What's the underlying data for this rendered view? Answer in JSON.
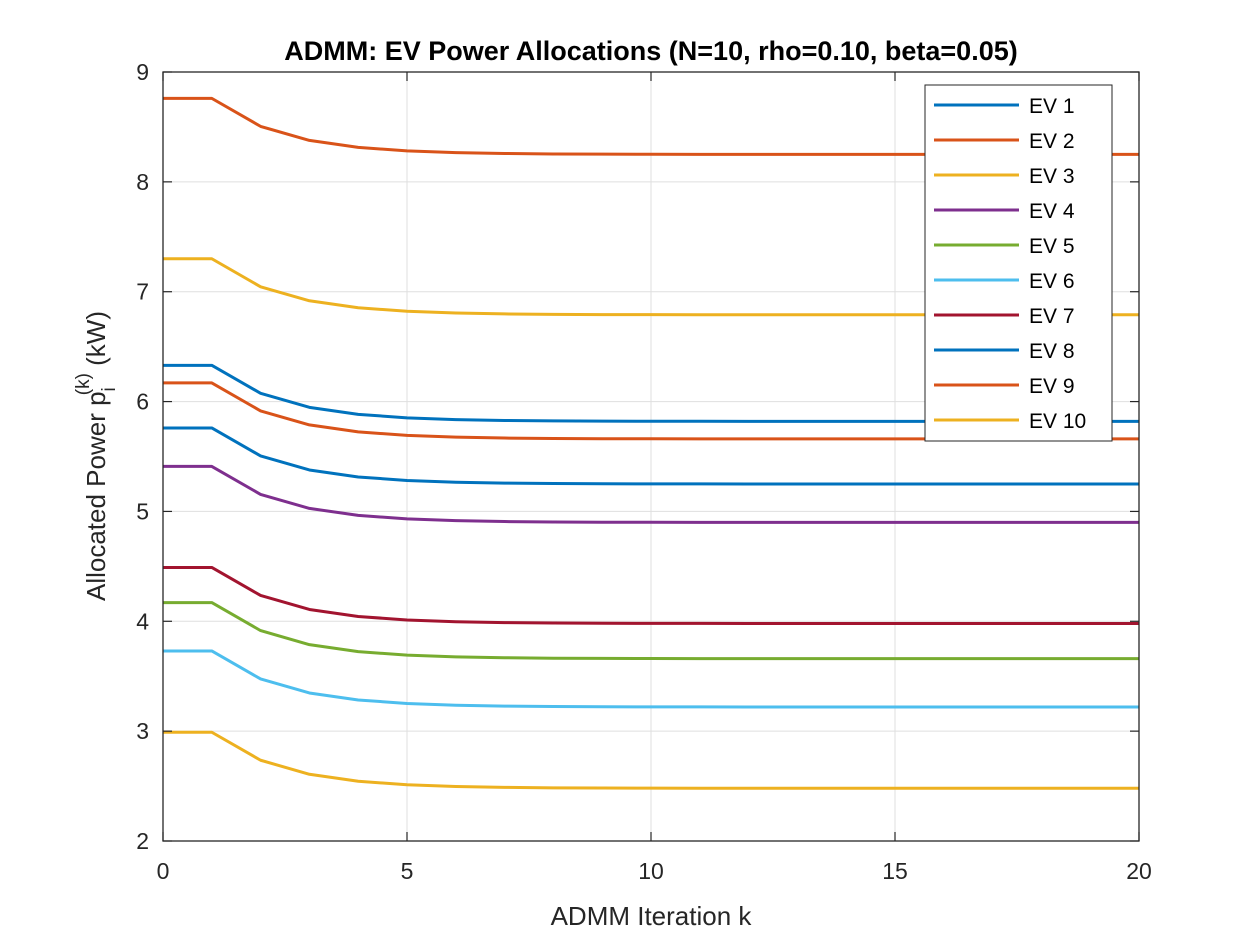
{
  "chart_data": {
    "type": "line",
    "title": "ADMM: EV Power Allocations (N=10, rho=0.10, beta=0.05)",
    "xlabel": "ADMM Iteration k",
    "ylabel": {
      "prefix": "Allocated Power p",
      "sub": "i",
      "sup": "(k)",
      "suffix": " (kW)"
    },
    "xlim": [
      0,
      20
    ],
    "ylim": [
      2,
      9
    ],
    "xticks": [
      "0",
      "5",
      "10",
      "15",
      "20"
    ],
    "yticks": [
      "2",
      "3",
      "4",
      "5",
      "6",
      "7",
      "8",
      "9"
    ],
    "grid": true,
    "legend_position": "top-right",
    "x": [
      0,
      1,
      2,
      3,
      4,
      5,
      6,
      7,
      8,
      9,
      10,
      11,
      12,
      13,
      14,
      15,
      16,
      17,
      18,
      19,
      20
    ],
    "series": [
      {
        "name": "EV 1",
        "color": "#0072BD",
        "start": 5.76,
        "final": 5.25
      },
      {
        "name": "EV 2",
        "color": "#D95319",
        "start": 8.76,
        "final": 8.25
      },
      {
        "name": "EV 3",
        "color": "#EDB120",
        "start": 7.3,
        "final": 6.79
      },
      {
        "name": "EV 4",
        "color": "#7E2F8E",
        "start": 5.41,
        "final": 4.9
      },
      {
        "name": "EV 5",
        "color": "#77AC30",
        "start": 4.17,
        "final": 3.66
      },
      {
        "name": "EV 6",
        "color": "#4DBEEE",
        "start": 3.73,
        "final": 3.22
      },
      {
        "name": "EV 7",
        "color": "#A2142F",
        "start": 4.49,
        "final": 3.98
      },
      {
        "name": "EV 8",
        "color": "#0072BD",
        "start": 6.33,
        "final": 5.82
      },
      {
        "name": "EV 9",
        "color": "#D95319",
        "start": 6.17,
        "final": 5.66
      },
      {
        "name": "EV 10",
        "color": "#EDB120",
        "start": 2.99,
        "final": 2.48
      }
    ]
  }
}
